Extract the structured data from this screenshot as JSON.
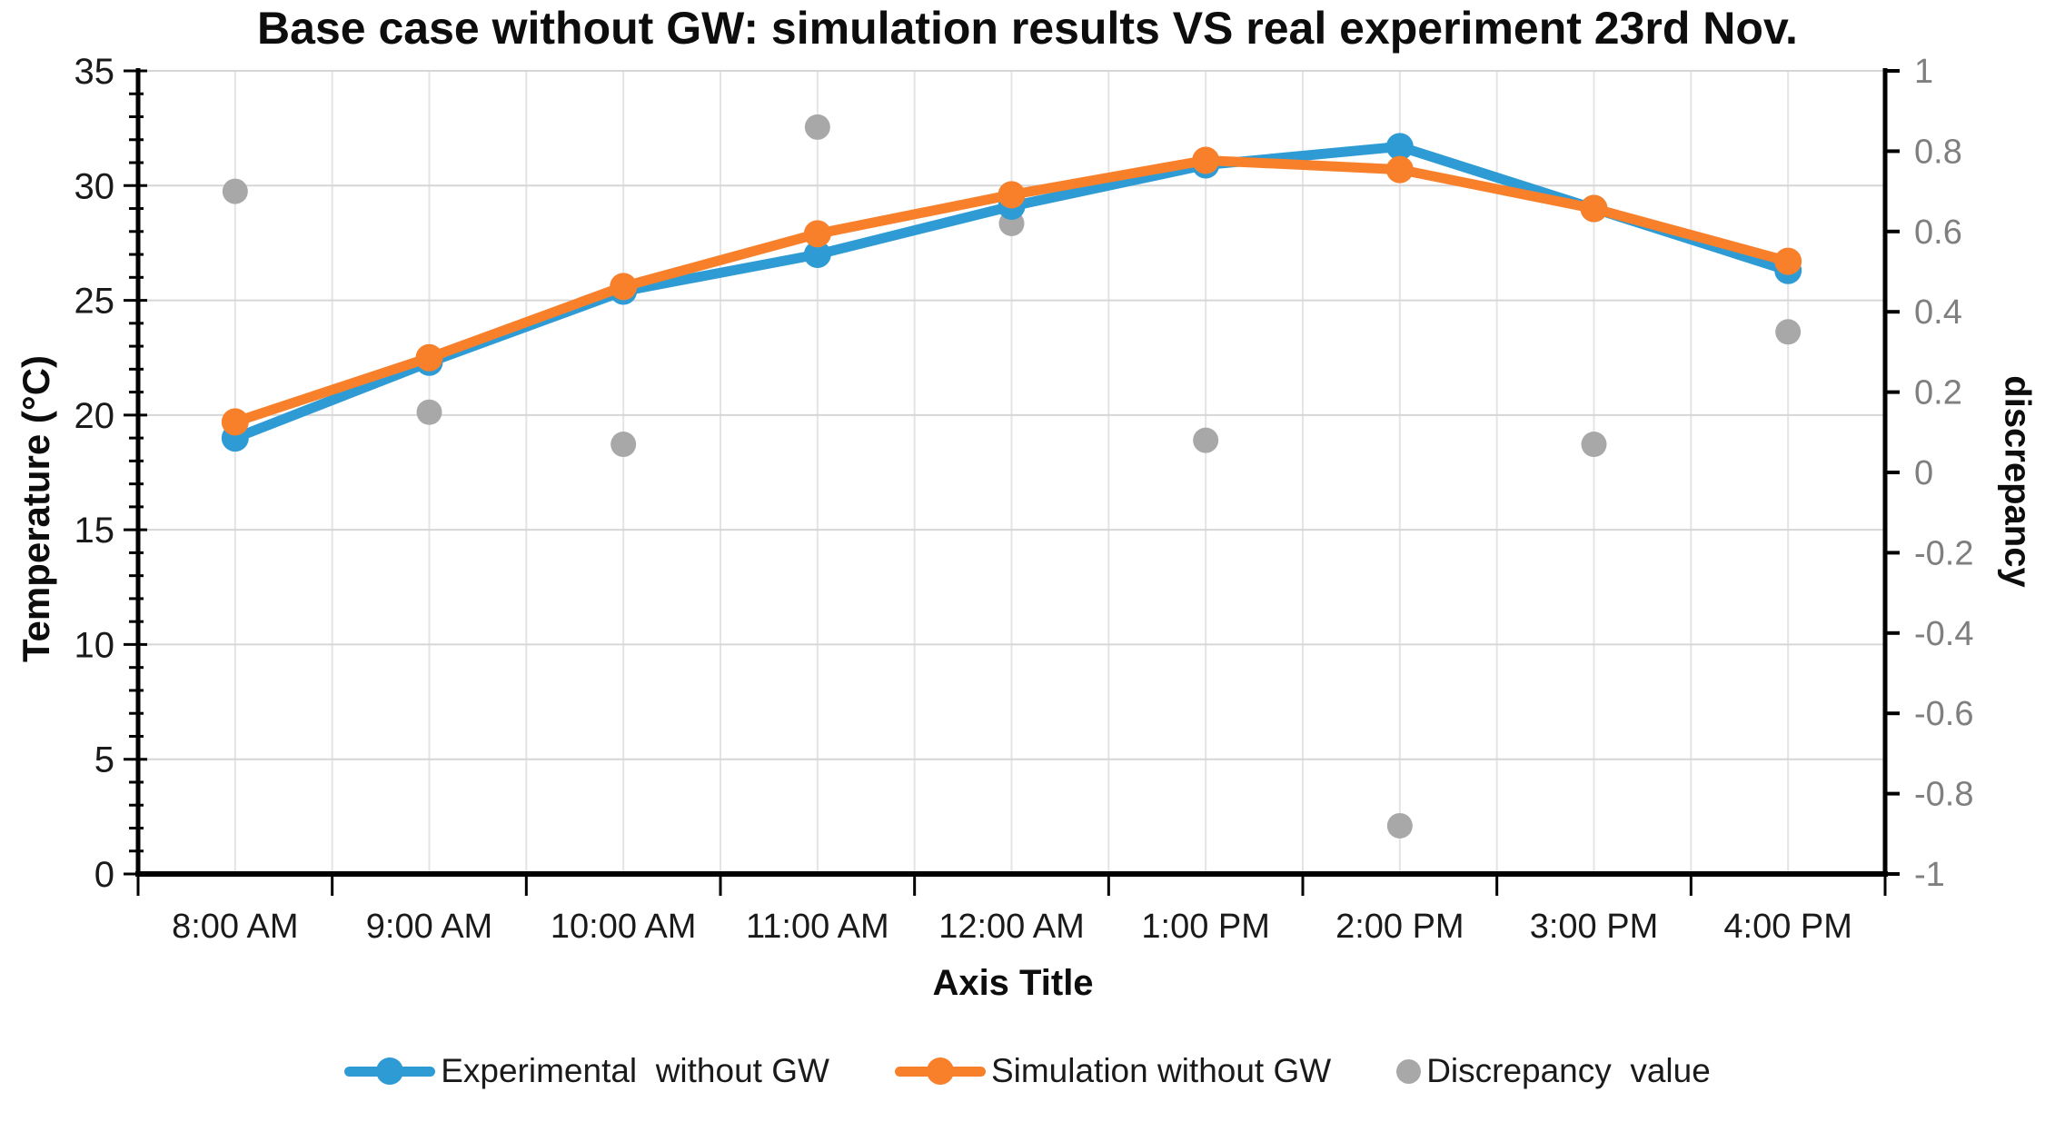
{
  "page": {
    "background": "#FFFFFF"
  },
  "chart_data": {
    "type": "line+scatter",
    "title": "Base case without GW: simulation results VS real experiment 23rd Nov.",
    "categories": [
      "8:00 AM",
      "9:00 AM",
      "10:00 AM",
      "11:00 AM",
      "12:00 AM",
      "1:00 PM",
      "2:00 PM",
      "3:00 PM",
      "4:00 PM"
    ],
    "series": [
      {
        "name": "Experimental  without GW",
        "type": "line",
        "axis": "left",
        "color": "#2E9BD5",
        "values": [
          19.0,
          22.3,
          25.4,
          27.0,
          29.1,
          30.9,
          31.7,
          29.0,
          26.3
        ]
      },
      {
        "name": "Simulation without GW",
        "type": "line",
        "axis": "left",
        "color": "#F8802B",
        "values": [
          19.7,
          22.5,
          25.6,
          27.9,
          29.6,
          31.1,
          30.7,
          29.0,
          26.7
        ]
      },
      {
        "name": "Discrepancy  value",
        "type": "scatter",
        "axis": "right",
        "color": "#A8A8A8",
        "values": [
          0.7,
          0.15,
          0.07,
          0.86,
          0.62,
          0.08,
          -0.88,
          0.07,
          0.35
        ]
      }
    ],
    "x_axis": {
      "label": "Axis Title",
      "tick_labels": [
        "8:00 AM",
        "9:00 AM",
        "10:00 AM",
        "11:00 AM",
        "12:00 AM",
        "1:00 PM",
        "2:00 PM",
        "3:00 PM",
        "4:00 PM"
      ]
    },
    "left_axis": {
      "label": "Temperature (°C)",
      "min": 0,
      "max": 35,
      "step": 5,
      "minor_step": 1,
      "tick_labels": [
        "0",
        "5",
        "10",
        "15",
        "20",
        "25",
        "30",
        "35"
      ]
    },
    "right_axis": {
      "label": "discrepancy",
      "min": -1,
      "max": 1,
      "step": 0.2,
      "tick_labels": [
        "1",
        "0.8",
        "0.6",
        "0.4",
        "0.2",
        "0",
        "-0.2",
        "-0.4",
        "-0.6",
        "-0.8",
        "-1"
      ]
    },
    "legend": {
      "position": "bottom",
      "entries": [
        "Experimental  without GW",
        "Simulation without GW",
        "Discrepancy  value"
      ]
    },
    "grid": {
      "horizontal": "major",
      "vertical": "half-category"
    },
    "colors": {
      "experimental_line": "#2E9BD5",
      "simulation_line": "#F8802B",
      "discrepancy_dot": "#A8A8A8",
      "grid_horizontal": "#D6D6D6",
      "grid_vertical": "#E4E4E4",
      "axis": "#000000",
      "left_tick_label": "#1A1A1A",
      "right_tick_label": "#7F7F7F",
      "x_tick_label": "#1A1A1A",
      "title": "#0D0D0D"
    }
  }
}
